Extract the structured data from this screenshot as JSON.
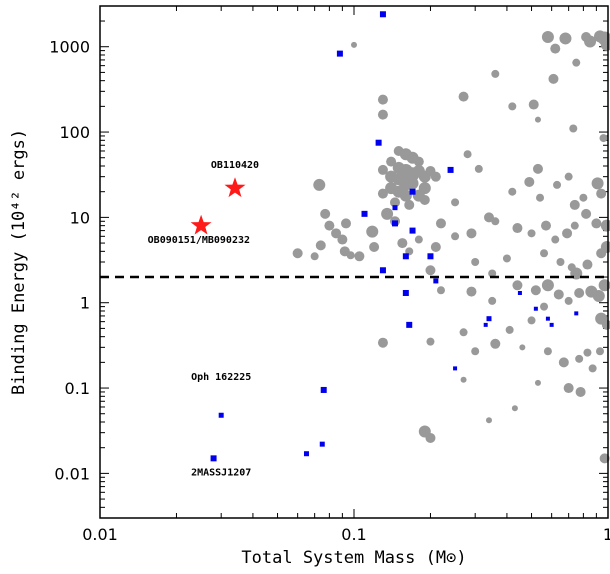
{
  "chart_data": {
    "type": "scatter",
    "xscale": "log",
    "yscale": "log",
    "xlim": [
      0.01,
      1
    ],
    "ylim": [
      0.003,
      3000
    ],
    "xlabel": "Total System Mass (M⊙)",
    "ylabel": "Binding Energy (10⁴² ergs)",
    "x_ticks": [
      {
        "v": 0.01,
        "label": "0.01"
      },
      {
        "v": 0.1,
        "label": "0.1"
      },
      {
        "v": 1,
        "label": "1"
      }
    ],
    "y_ticks": [
      {
        "v": 0.01,
        "label": "0.01"
      },
      {
        "v": 0.1,
        "label": "0.1"
      },
      {
        "v": 1,
        "label": "1"
      },
      {
        "v": 10,
        "label": "10"
      },
      {
        "v": 100,
        "label": "100"
      },
      {
        "v": 1000,
        "label": "1000"
      }
    ],
    "threshold_line": {
      "y": 2,
      "style": "dashed",
      "color": "#000000"
    },
    "colors": {
      "gray": "#999999",
      "blue": "#0000ee",
      "red": "#ff1a1a"
    },
    "annotations": [
      {
        "text": "OB110420",
        "x": 0.034,
        "y": 38
      },
      {
        "text": "OB090151/MB090232",
        "x": 0.0245,
        "y": 5.0
      },
      {
        "text": "Oph 162225",
        "x": 0.03,
        "y": 0.125
      },
      {
        "text": "2MASSJ1207",
        "x": 0.03,
        "y": 0.0095
      }
    ],
    "series": [
      {
        "marker": "star",
        "color": "red",
        "points": [
          [
            0.034,
            22
          ],
          [
            0.025,
            8
          ]
        ]
      },
      {
        "marker": "square",
        "color": "blue",
        "points": [
          [
            0.13,
            2400,
            5
          ],
          [
            0.088,
            830,
            5
          ],
          [
            0.125,
            75,
            5
          ],
          [
            0.24,
            36,
            5
          ],
          [
            0.17,
            20,
            5
          ],
          [
            0.11,
            11,
            5
          ],
          [
            0.145,
            8.5,
            5
          ],
          [
            0.17,
            7,
            5
          ],
          [
            0.145,
            13,
            4
          ],
          [
            0.13,
            2.4,
            5
          ],
          [
            0.16,
            3.5,
            5
          ],
          [
            0.2,
            3.5,
            5
          ],
          [
            0.21,
            1.8,
            4
          ],
          [
            0.16,
            1.3,
            5
          ],
          [
            0.165,
            0.55,
            5
          ],
          [
            0.34,
            0.65,
            4
          ],
          [
            0.33,
            0.55,
            3
          ],
          [
            0.25,
            0.17,
            3
          ],
          [
            0.52,
            0.85,
            3
          ],
          [
            0.45,
            1.3,
            3
          ],
          [
            0.6,
            0.55,
            3
          ],
          [
            0.58,
            0.65,
            3
          ],
          [
            0.75,
            0.75,
            3
          ],
          [
            0.076,
            0.095,
            5
          ],
          [
            0.03,
            0.048,
            4
          ],
          [
            0.075,
            0.022,
            4
          ],
          [
            0.065,
            0.017,
            4
          ],
          [
            0.028,
            0.015,
            5
          ]
        ]
      },
      {
        "marker": "circle",
        "color": "gray",
        "points": [
          [
            0.1,
            1050,
            3
          ],
          [
            0.58,
            1300,
            6
          ],
          [
            0.62,
            950,
            5
          ],
          [
            0.68,
            1250,
            6
          ],
          [
            0.82,
            1300,
            5
          ],
          [
            0.85,
            1150,
            6
          ],
          [
            0.93,
            1320,
            6
          ],
          [
            0.97,
            1250,
            7
          ],
          [
            0.99,
            1050,
            6
          ],
          [
            0.36,
            480,
            4
          ],
          [
            0.75,
            650,
            4
          ],
          [
            0.61,
            420,
            5
          ],
          [
            0.42,
            200,
            4
          ],
          [
            0.13,
            240,
            5
          ],
          [
            0.13,
            160,
            5
          ],
          [
            0.27,
            260,
            5
          ],
          [
            0.51,
            210,
            5
          ],
          [
            0.53,
            140,
            3
          ],
          [
            0.73,
            110,
            4
          ],
          [
            0.96,
            85,
            4
          ],
          [
            0.15,
            60,
            5
          ],
          [
            0.16,
            55,
            6
          ],
          [
            0.17,
            50,
            6
          ],
          [
            0.18,
            45,
            5
          ],
          [
            0.14,
            45,
            5
          ],
          [
            0.15,
            38,
            6
          ],
          [
            0.16,
            35,
            7
          ],
          [
            0.17,
            32,
            7
          ],
          [
            0.18,
            35,
            6
          ],
          [
            0.19,
            30,
            6
          ],
          [
            0.14,
            30,
            6
          ],
          [
            0.15,
            28,
            6
          ],
          [
            0.16,
            25,
            7
          ],
          [
            0.17,
            25,
            6
          ],
          [
            0.19,
            22,
            6
          ],
          [
            0.2,
            35,
            5
          ],
          [
            0.13,
            36,
            5
          ],
          [
            0.14,
            22,
            6
          ],
          [
            0.15,
            20,
            6
          ],
          [
            0.16,
            18,
            6
          ],
          [
            0.18,
            18,
            6
          ],
          [
            0.19,
            16,
            5
          ],
          [
            0.21,
            30,
            5
          ],
          [
            0.13,
            19,
            5
          ],
          [
            0.145,
            15,
            5
          ],
          [
            0.165,
            14,
            5
          ],
          [
            0.28,
            55,
            4
          ],
          [
            0.31,
            37,
            4
          ],
          [
            0.53,
            37,
            5
          ],
          [
            0.7,
            30,
            4
          ],
          [
            0.91,
            25,
            6
          ],
          [
            0.94,
            19,
            5
          ],
          [
            0.8,
            17,
            4
          ],
          [
            0.63,
            24,
            4
          ],
          [
            0.49,
            26,
            5
          ],
          [
            0.42,
            20,
            4
          ],
          [
            0.25,
            15,
            4
          ],
          [
            0.54,
            17,
            4
          ],
          [
            0.74,
            14,
            5
          ],
          [
            0.06,
            3.8,
            5
          ],
          [
            0.073,
            24,
            6
          ],
          [
            0.077,
            11,
            5
          ],
          [
            0.08,
            8,
            5
          ],
          [
            0.085,
            6.5,
            5
          ],
          [
            0.093,
            8.5,
            5
          ],
          [
            0.074,
            4.7,
            5
          ],
          [
            0.07,
            3.5,
            4
          ],
          [
            0.09,
            5.5,
            5
          ],
          [
            0.092,
            4,
            5
          ],
          [
            0.097,
            3.6,
            4
          ],
          [
            0.105,
            3.5,
            5
          ],
          [
            0.118,
            6.8,
            6
          ],
          [
            0.12,
            4.5,
            5
          ],
          [
            0.135,
            11,
            6
          ],
          [
            0.145,
            9,
            5
          ],
          [
            0.155,
            5,
            5
          ],
          [
            0.165,
            4,
            4
          ],
          [
            0.18,
            5.5,
            4
          ],
          [
            0.21,
            4.5,
            5
          ],
          [
            0.22,
            8.5,
            5
          ],
          [
            0.25,
            6,
            4
          ],
          [
            0.29,
            6.5,
            5
          ],
          [
            0.34,
            10,
            5
          ],
          [
            0.36,
            9,
            4
          ],
          [
            0.44,
            7.5,
            5
          ],
          [
            0.5,
            6.5,
            4
          ],
          [
            0.57,
            8,
            5
          ],
          [
            0.62,
            5.5,
            4
          ],
          [
            0.69,
            6.5,
            5
          ],
          [
            0.74,
            8,
            4
          ],
          [
            0.82,
            11,
            5
          ],
          [
            0.9,
            8.5,
            5
          ],
          [
            0.99,
            8,
            6
          ],
          [
            0.56,
            3.8,
            4
          ],
          [
            0.65,
            3,
            4
          ],
          [
            0.72,
            2.6,
            4
          ],
          [
            0.75,
            2.2,
            6
          ],
          [
            0.83,
            2.8,
            5
          ],
          [
            0.94,
            3.8,
            5
          ],
          [
            0.99,
            4.5,
            6
          ],
          [
            0.4,
            3.3,
            4
          ],
          [
            0.3,
            3,
            4
          ],
          [
            0.35,
            2.2,
            4
          ],
          [
            0.2,
            2.4,
            5
          ],
          [
            0.22,
            1.4,
            4
          ],
          [
            0.29,
            1.35,
            5
          ],
          [
            0.35,
            1.05,
            4
          ],
          [
            0.44,
            1.6,
            5
          ],
          [
            0.52,
            1.4,
            5
          ],
          [
            0.58,
            1.6,
            6
          ],
          [
            0.64,
            1.25,
            5
          ],
          [
            0.7,
            1.05,
            4
          ],
          [
            0.77,
            1.3,
            5
          ],
          [
            0.86,
            1.35,
            6
          ],
          [
            0.92,
            1.2,
            6
          ],
          [
            0.97,
            1.6,
            6
          ],
          [
            0.94,
            0.65,
            6
          ],
          [
            0.99,
            0.55,
            5
          ],
          [
            0.56,
            0.9,
            4
          ],
          [
            0.5,
            0.62,
            4
          ],
          [
            0.41,
            0.48,
            4
          ],
          [
            0.36,
            0.33,
            5
          ],
          [
            0.3,
            0.27,
            4
          ],
          [
            0.2,
            0.35,
            4
          ],
          [
            0.27,
            0.45,
            4
          ],
          [
            0.46,
            0.3,
            3
          ],
          [
            0.58,
            0.27,
            4
          ],
          [
            0.67,
            0.2,
            5
          ],
          [
            0.77,
            0.22,
            4
          ],
          [
            0.83,
            0.26,
            4
          ],
          [
            0.87,
            0.17,
            4
          ],
          [
            0.93,
            0.27,
            4
          ],
          [
            0.7,
            0.1,
            5
          ],
          [
            0.78,
            0.09,
            5
          ],
          [
            0.53,
            0.115,
            3
          ],
          [
            0.13,
            0.34,
            5
          ],
          [
            0.27,
            0.125,
            3
          ],
          [
            0.34,
            0.042,
            3
          ],
          [
            0.19,
            0.031,
            6
          ],
          [
            0.2,
            0.026,
            5
          ],
          [
            0.43,
            0.058,
            3
          ],
          [
            0.97,
            0.015,
            5
          ]
        ]
      }
    ]
  }
}
